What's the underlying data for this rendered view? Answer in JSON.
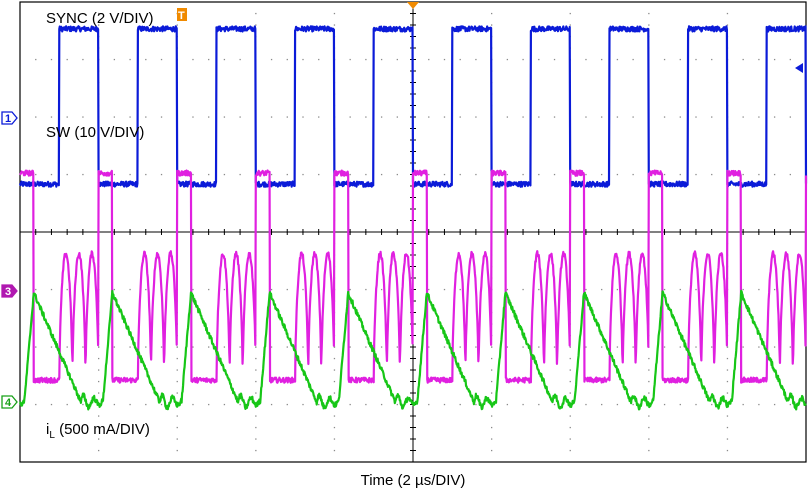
{
  "chart_data": {
    "type": "line",
    "title": "",
    "xlabel": "Time (2 µs/DIV)",
    "ylabel": "",
    "grid": true,
    "x_divisions": 10,
    "y_divisions": 8,
    "xlim": [
      0,
      20
    ],
    "x_unit": "µs",
    "series": [
      {
        "name": "SYNC (2 V/DIV)",
        "channel": "1",
        "scale": "2 V/DIV",
        "color": "#0b1bd8",
        "waveform": "square",
        "period_us": 2.0,
        "first_rising_edge_us": 1.0,
        "duty": 0.5,
        "low_div": -1.15,
        "high_div": 1.55
      },
      {
        "name": "SW (10 V/DIV)",
        "channel": "3",
        "scale": "10 V/DIV",
        "color": "#e020e0",
        "waveform": "switch-node",
        "period_us": 2.0,
        "first_rising_edge_us": 0.0,
        "on_time_us": 0.35,
        "ringing_start_us": 1.0,
        "ringing_cycles": 3,
        "low_div": -1.55,
        "high_div": 2.05,
        "ringing_high_div": 0.65
      },
      {
        "name": "iL (500 mA/DIV)",
        "channel": "4",
        "scale": "500 mA/DIV",
        "color": "#17c617",
        "waveform": "inductor-current",
        "period_us": 2.0,
        "first_peak_us": 0.35,
        "peak_div": 1.9,
        "valley_div": 0.0,
        "ramp_down_until_us": 1.55,
        "ripple_div": 0.12
      }
    ]
  },
  "labels": {
    "sync": "SYNC (2 V/DIV)",
    "sw": "SW (10 V/DIV)",
    "il_main": "i",
    "il_sub": "L",
    "il_rest": " (500 mA/DIV)",
    "time": "Time (2 µs/DIV)"
  },
  "markers": {
    "ch1": "1",
    "ch3": "3",
    "ch4": "4",
    "trigger": "T"
  }
}
